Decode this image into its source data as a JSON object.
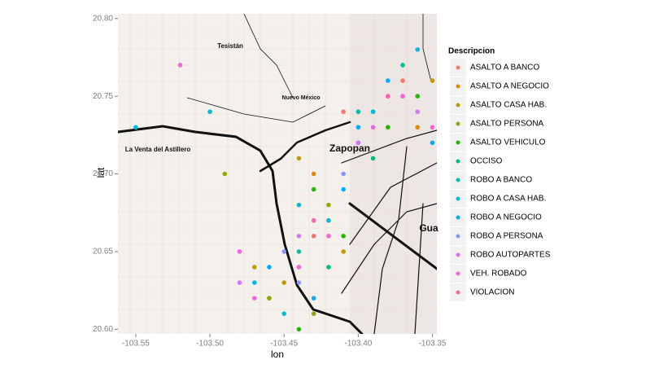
{
  "chart_data": {
    "type": "scatter",
    "x_label": "lon",
    "y_label": "lat",
    "legend_title": "Descripcion",
    "map_labels": [
      "Tesistán",
      "La Venta del Astillero",
      "Zapopan",
      "Gua",
      "Nuevo México"
    ],
    "xlim": [
      -103.562,
      -103.347
    ],
    "ylim": [
      20.597,
      20.803
    ],
    "xticks": [
      -103.55,
      {
        "value": -103.5,
        "label": "-103.50"
      },
      -103.45,
      {
        "value": -103.4,
        "label": "-103.40"
      },
      -103.35
    ],
    "yticks": [
      {
        "value": 20.6,
        "label": "20.60"
      },
      20.65,
      {
        "value": 20.7,
        "label": "20.70"
      },
      20.75,
      {
        "value": 20.8,
        "label": "20.80"
      }
    ],
    "series": [
      {
        "name": "ASALTO A BANCO",
        "color": "#F8766D",
        "x": [
          -103.41,
          -103.43,
          -103.37
        ],
        "y": [
          20.74,
          20.66,
          20.76
        ]
      },
      {
        "name": "ASALTO A NEGOCIO",
        "color": "#E18A00",
        "x": [
          -103.44,
          -103.42,
          -103.38,
          -103.36,
          -103.46,
          -103.43
        ],
        "y": [
          20.64,
          20.67,
          20.75,
          20.73,
          20.62,
          20.7
        ]
      },
      {
        "name": "ASALTO CASA HAB.",
        "color": "#BE9C00",
        "x": [
          -103.45,
          -103.41,
          -103.39,
          -103.35,
          -103.47,
          -103.44
        ],
        "y": [
          20.63,
          20.65,
          20.74,
          20.76,
          20.64,
          20.71
        ]
      },
      {
        "name": "ASALTO PERSONA",
        "color": "#8CAB00",
        "x": [
          -103.46,
          -103.43,
          -103.4,
          -103.37,
          -103.42,
          -103.49
        ],
        "y": [
          20.62,
          20.61,
          20.72,
          20.77,
          20.68,
          20.7
        ]
      },
      {
        "name": "ASALTO VEHICULO",
        "color": "#24B700",
        "x": [
          -103.44,
          -103.41,
          -103.38,
          -103.36,
          -103.43
        ],
        "y": [
          20.6,
          20.66,
          20.73,
          20.75,
          20.69
        ]
      },
      {
        "name": "OCCISO",
        "color": "#00BE70",
        "x": [
          -103.42,
          -103.39
        ],
        "y": [
          20.64,
          20.71
        ]
      },
      {
        "name": "ROBO A BANCO",
        "color": "#00C1AB",
        "x": [
          -103.4,
          -103.37,
          -103.44
        ],
        "y": [
          20.74,
          20.77,
          20.65
        ]
      },
      {
        "name": "ROBO A CASA HAB.",
        "color": "#00BBDA",
        "x": [
          -103.47,
          -103.45,
          -103.42,
          -103.39,
          -103.36,
          -103.5,
          -103.55,
          -103.44
        ],
        "y": [
          20.63,
          20.61,
          20.67,
          20.74,
          20.78,
          20.74,
          20.73,
          20.68
        ]
      },
      {
        "name": "ROBO A NEGOCIO",
        "color": "#00ACFC",
        "x": [
          -103.46,
          -103.43,
          -103.4,
          -103.38,
          -103.35,
          -103.41
        ],
        "y": [
          20.64,
          20.62,
          20.73,
          20.76,
          20.72,
          20.69
        ]
      },
      {
        "name": "ROBO A PERSONA",
        "color": "#8B93FF",
        "x": [
          -103.45,
          -103.41,
          -103.37,
          -103.44
        ],
        "y": [
          20.65,
          20.7,
          20.75,
          20.63
        ]
      },
      {
        "name": "ROBO AUTOPARTES",
        "color": "#D575FE",
        "x": [
          -103.44,
          -103.4,
          -103.36,
          -103.48
        ],
        "y": [
          20.66,
          20.72,
          20.74,
          20.63
        ]
      },
      {
        "name": "VEH. ROBADO",
        "color": "#F962DD",
        "x": [
          -103.47,
          -103.44,
          -103.42,
          -103.39,
          -103.37,
          -103.35,
          -103.48,
          -103.52
        ],
        "y": [
          20.62,
          20.64,
          20.66,
          20.73,
          20.75,
          20.73,
          20.65,
          20.77
        ]
      },
      {
        "name": "VIOLACION",
        "color": "#FF65AC",
        "x": [
          -103.43,
          -103.38
        ],
        "y": [
          20.67,
          20.75
        ]
      }
    ]
  }
}
